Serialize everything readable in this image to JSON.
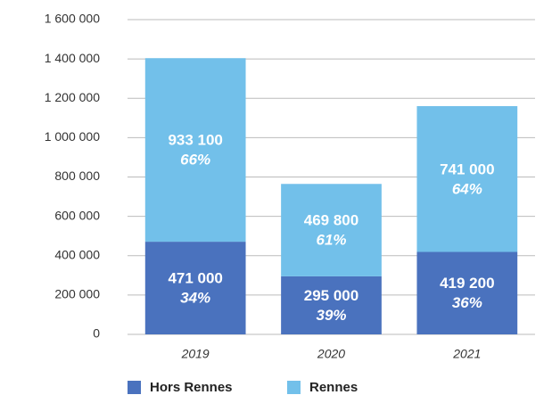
{
  "chart_data": {
    "type": "stacked_bar",
    "categories": [
      "2019",
      "2020",
      "2021"
    ],
    "series": [
      {
        "name": "Hors Rennes",
        "color": "#4a72be",
        "values": [
          471000,
          295000,
          419200
        ],
        "value_labels": [
          "471 000",
          "295 000",
          "419 200"
        ],
        "share_labels": [
          "34%",
          "39%",
          "36%"
        ]
      },
      {
        "name": "Rennes",
        "color": "#72c0ea",
        "values": [
          933100,
          469800,
          741000
        ],
        "value_labels": [
          "933 100",
          "469 800",
          "741 000"
        ],
        "share_labels": [
          "66%",
          "61%",
          "64%"
        ]
      }
    ],
    "ylim": [
      0,
      1600000
    ],
    "yticks": [
      0,
      {
        "value": 200000,
        "label": "200 000"
      },
      {
        "value": 400000,
        "label": "400 000"
      },
      {
        "value": 600000,
        "label": "600 000"
      },
      {
        "value": 800000,
        "label": "800 000"
      },
      {
        "value": 1000000,
        "label": "1 000 000"
      },
      {
        "value": 1200000,
        "label": "1 200 000"
      },
      {
        "value": 1400000,
        "label": "1 400 000"
      },
      {
        "value": 1600000,
        "label": "1 600 000"
      }
    ],
    "grid": true,
    "legend": "bottom"
  }
}
